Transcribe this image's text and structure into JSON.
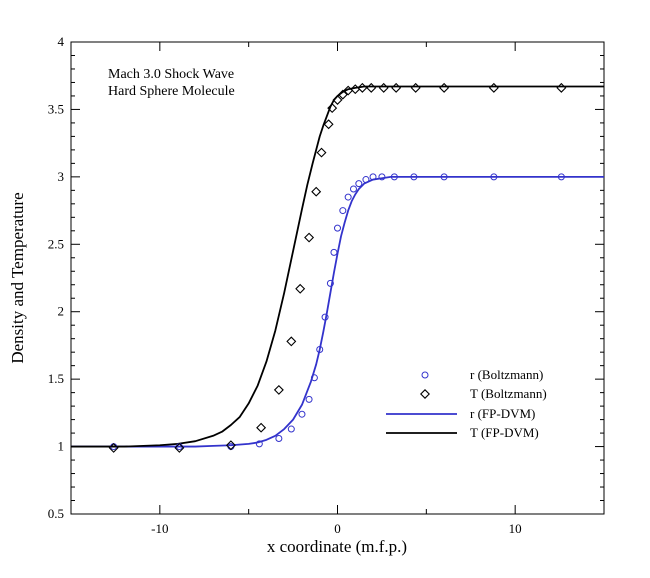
{
  "chart_data": {
    "type": "line",
    "title": "",
    "annotations": [
      "Mach 3.0 Shock Wave",
      "Hard Sphere Molecule"
    ],
    "xlabel": "x coordinate (m.f.p.)",
    "ylabel": "Density and Temperature",
    "xlim": [
      -15,
      15
    ],
    "ylim": [
      0.5,
      4
    ],
    "xticks": [
      -10,
      0,
      10
    ],
    "xtick_labels": [
      "-10",
      "0",
      "10"
    ],
    "yticks": [
      0.5,
      1,
      1.5,
      2,
      2.5,
      3,
      3.5,
      4
    ],
    "ytick_labels": [
      "0.5",
      "1",
      "1.5",
      "2",
      "2.5",
      "3",
      "3.5",
      "4"
    ],
    "grid": false,
    "legend_position": "lower-right",
    "series": [
      {
        "name": "r (Boltzmann)",
        "kind": "scatter",
        "marker": "circle",
        "color": "#3333cc",
        "x": [
          -12.6,
          -8.9,
          -6.0,
          -4.4,
          -3.3,
          -2.6,
          -2.0,
          -1.6,
          -1.3,
          -1.0,
          -0.7,
          -0.4,
          -0.2,
          0.0,
          0.3,
          0.6,
          0.9,
          1.2,
          1.6,
          2.0,
          2.5,
          3.2,
          4.3,
          6.0,
          8.8,
          12.6
        ],
        "y": [
          1.0,
          1.0,
          1.0,
          1.02,
          1.06,
          1.13,
          1.24,
          1.35,
          1.51,
          1.72,
          1.96,
          2.21,
          2.44,
          2.62,
          2.75,
          2.85,
          2.91,
          2.95,
          2.98,
          3.0,
          3.0,
          3.0,
          3.0,
          3.0,
          3.0,
          3.0
        ]
      },
      {
        "name": "T (Boltzmann)",
        "kind": "scatter",
        "marker": "diamond",
        "color": "#000000",
        "x": [
          -12.6,
          -8.9,
          -6.0,
          -4.3,
          -3.3,
          -2.6,
          -2.1,
          -1.6,
          -1.2,
          -0.9,
          -0.5,
          -0.3,
          0.0,
          0.3,
          0.6,
          1.0,
          1.4,
          1.9,
          2.6,
          3.3,
          4.4,
          6.0,
          8.8,
          12.6
        ],
        "y": [
          0.99,
          0.99,
          1.01,
          1.14,
          1.42,
          1.78,
          2.17,
          2.55,
          2.89,
          3.18,
          3.39,
          3.51,
          3.57,
          3.61,
          3.64,
          3.65,
          3.66,
          3.66,
          3.66,
          3.66,
          3.66,
          3.66,
          3.66,
          3.66
        ]
      },
      {
        "name": "r (FP-DVM)",
        "kind": "line",
        "color": "#3333cc",
        "x": [
          -15,
          -12,
          -10,
          -8,
          -7,
          -6,
          -5,
          -4.5,
          -4,
          -3.5,
          -3,
          -2.5,
          -2,
          -1.5,
          -1.2,
          -1,
          -0.8,
          -0.6,
          -0.4,
          -0.2,
          0,
          0.2,
          0.4,
          0.6,
          0.8,
          1,
          1.2,
          1.5,
          2,
          2.5,
          3,
          3.5,
          4,
          5,
          6,
          8,
          10,
          12,
          15
        ],
        "y": [
          1.0,
          1.0,
          1.0,
          1.0,
          1.005,
          1.01,
          1.02,
          1.03,
          1.05,
          1.08,
          1.13,
          1.2,
          1.31,
          1.48,
          1.61,
          1.72,
          1.85,
          1.99,
          2.14,
          2.29,
          2.43,
          2.56,
          2.66,
          2.75,
          2.82,
          2.87,
          2.91,
          2.95,
          2.98,
          2.99,
          3.0,
          3.0,
          3.0,
          3.0,
          3.0,
          3.0,
          3.0,
          3.0,
          3.0
        ]
      },
      {
        "name": "T (FP-DVM)",
        "kind": "line",
        "color": "#000000",
        "x": [
          -15,
          -12,
          -10,
          -9,
          -8,
          -7,
          -6.5,
          -6,
          -5.5,
          -5,
          -4.5,
          -4,
          -3.5,
          -3,
          -2.5,
          -2,
          -1.7,
          -1.4,
          -1.2,
          -1,
          -0.8,
          -0.6,
          -0.4,
          -0.2,
          0,
          0.3,
          0.6,
          1,
          1.5,
          2,
          3,
          4,
          6,
          8,
          10,
          12,
          15
        ],
        "y": [
          1.0,
          1.0,
          1.01,
          1.02,
          1.04,
          1.08,
          1.11,
          1.16,
          1.22,
          1.32,
          1.45,
          1.63,
          1.86,
          2.14,
          2.45,
          2.76,
          2.94,
          3.1,
          3.2,
          3.3,
          3.38,
          3.45,
          3.52,
          3.57,
          3.6,
          3.63,
          3.65,
          3.66,
          3.67,
          3.67,
          3.67,
          3.67,
          3.67,
          3.67,
          3.67,
          3.67,
          3.67
        ]
      }
    ]
  }
}
